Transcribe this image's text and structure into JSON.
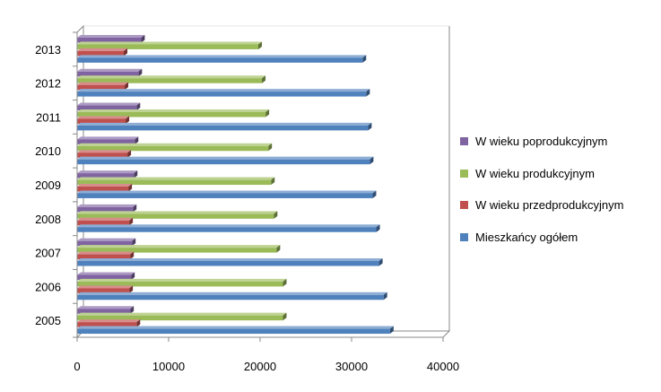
{
  "chart_data": {
    "type": "bar",
    "orientation": "horizontal",
    "title": "",
    "xlabel": "",
    "ylabel": "",
    "categories": [
      "2005",
      "2006",
      "2007",
      "2008",
      "2009",
      "2010",
      "2011",
      "2012",
      "2013"
    ],
    "xlim": [
      0,
      40000
    ],
    "xticks": [
      0,
      10000,
      20000,
      30000,
      40000
    ],
    "grid": false,
    "legend_position": "right",
    "series": [
      {
        "name": "Mieszkańcy ogółem",
        "color": "#4F81BD",
        "values": [
          34200,
          33500,
          33000,
          32700,
          32300,
          32000,
          31800,
          31600,
          31200
        ]
      },
      {
        "name": "W wieku przedprodukcyjnym",
        "color": "#C0504D",
        "values": [
          6500,
          5700,
          5800,
          5700,
          5600,
          5500,
          5300,
          5200,
          5100
        ]
      },
      {
        "name": "W wieku produkcyjnym",
        "color": "#9BBB59",
        "values": [
          22500,
          22500,
          21800,
          21500,
          21200,
          20900,
          20600,
          20200,
          19800
        ]
      },
      {
        "name": "W wieku poprodukcyjnym",
        "color": "#8064A2",
        "values": [
          5800,
          5900,
          6000,
          6100,
          6200,
          6300,
          6500,
          6700,
          7000
        ]
      }
    ],
    "legend_order": [
      3,
      2,
      1,
      0
    ]
  }
}
